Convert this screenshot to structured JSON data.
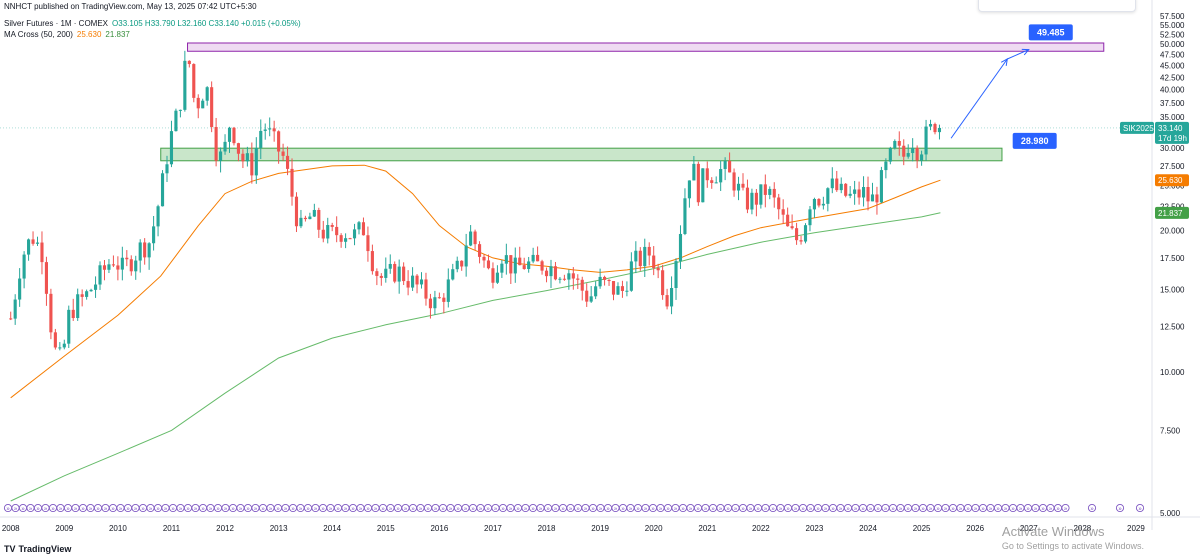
{
  "header": {
    "published": "NNHCT published on TradingView.com, May 13, 2025 07:42 UTC+5:30"
  },
  "legend": {
    "symbol": "Silver Futures · 1M · COMEX",
    "ohlc": "O33.105 H33.790 L32.160 C33.140 +0.015 (+0.05%)",
    "ma_label": "MA Cross (50, 200)",
    "ma_fast_value": "25.630",
    "ma_slow_value": "21.837"
  },
  "footer": {
    "logo": "TV",
    "brand": "TradingView"
  },
  "windows_watermark": {
    "line1": "Activate Windows",
    "line2": "Go to Settings to activate Windows."
  },
  "colors": {
    "up": "#26a69a",
    "down": "#ef5350",
    "ma_fast": "#f57c00",
    "ma_slow": "#66bb6a",
    "resistance_zone": "#e1bee7",
    "support_zone": "#a5d6a7",
    "annotation": "#2962ff",
    "event_marker": "#7e57c2"
  },
  "chart_data": {
    "type": "candlestick",
    "y_scale": "log",
    "ylim": [
      4.9,
      58
    ],
    "y_ticks": [
      "57.500",
      "55.000",
      "52.500",
      "50.000",
      "47.500",
      "45.000",
      "42.500",
      "40.000",
      "37.500",
      "35.000",
      "32.500",
      "30.000",
      "27.500",
      "25.000",
      "22.500",
      "20.000",
      "17.500",
      "15.000",
      "12.500",
      "10.000",
      "7.500",
      "5.000"
    ],
    "x_ticks": [
      "2008",
      "2009",
      "2010",
      "2011",
      "2012",
      "2013",
      "2014",
      "2015",
      "2016",
      "2017",
      "2018",
      "2019",
      "2020",
      "2021",
      "2022",
      "2023",
      "2024",
      "2025",
      "2026",
      "2027",
      "2028",
      "2029"
    ],
    "x_range": [
      2007.8,
      2029.3
    ],
    "price_path": [
      [
        2008.0,
        13.0
      ],
      [
        2008.2,
        17.5
      ],
      [
        2008.4,
        19.5
      ],
      [
        2008.6,
        18.0
      ],
      [
        2008.8,
        11.2
      ],
      [
        2008.95,
        10.5
      ],
      [
        2009.1,
        13.5
      ],
      [
        2009.4,
        14.5
      ],
      [
        2009.7,
        16.2
      ],
      [
        2009.9,
        17.5
      ],
      [
        2010.1,
        16.5
      ],
      [
        2010.4,
        18.3
      ],
      [
        2010.6,
        19.0
      ],
      [
        2010.8,
        24.0
      ],
      [
        2010.95,
        30.5
      ],
      [
        2011.15,
        37.0
      ],
      [
        2011.3,
        48.5
      ],
      [
        2011.45,
        36.0
      ],
      [
        2011.55,
        39.5
      ],
      [
        2011.7,
        40.0
      ],
      [
        2011.8,
        30.5
      ],
      [
        2011.95,
        28.2
      ],
      [
        2012.1,
        34.5
      ],
      [
        2012.3,
        28.5
      ],
      [
        2012.5,
        27.5
      ],
      [
        2012.7,
        34.0
      ],
      [
        2012.9,
        31.0
      ],
      [
        2013.1,
        28.5
      ],
      [
        2013.25,
        23.8
      ],
      [
        2013.4,
        20.0
      ],
      [
        2013.6,
        21.5
      ],
      [
        2013.8,
        20.0
      ],
      [
        2013.95,
        19.5
      ],
      [
        2014.2,
        20.0
      ],
      [
        2014.4,
        19.5
      ],
      [
        2014.6,
        20.3
      ],
      [
        2014.8,
        16.5
      ],
      [
        2014.95,
        15.7
      ],
      [
        2015.2,
        16.5
      ],
      [
        2015.5,
        15.5
      ],
      [
        2015.7,
        14.8
      ],
      [
        2015.95,
        13.9
      ],
      [
        2016.2,
        15.5
      ],
      [
        2016.4,
        17.0
      ],
      [
        2016.55,
        20.0
      ],
      [
        2016.75,
        18.0
      ],
      [
        2016.95,
        16.0
      ],
      [
        2017.15,
        18.0
      ],
      [
        2017.4,
        16.5
      ],
      [
        2017.6,
        17.0
      ],
      [
        2017.8,
        16.8
      ],
      [
        2017.95,
        17.0
      ],
      [
        2018.2,
        16.5
      ],
      [
        2018.4,
        16.5
      ],
      [
        2018.6,
        15.3
      ],
      [
        2018.8,
        14.3
      ],
      [
        2018.95,
        15.5
      ],
      [
        2019.2,
        15.1
      ],
      [
        2019.4,
        14.7
      ],
      [
        2019.6,
        17.0
      ],
      [
        2019.8,
        17.5
      ],
      [
        2019.95,
        18.0
      ],
      [
        2020.15,
        15.5
      ],
      [
        2020.25,
        14.5
      ],
      [
        2020.45,
        18.5
      ],
      [
        2020.6,
        24.5
      ],
      [
        2020.7,
        28.0
      ],
      [
        2020.85,
        24.0
      ],
      [
        2020.95,
        26.5
      ],
      [
        2021.1,
        26.5
      ],
      [
        2021.3,
        27.0
      ],
      [
        2021.5,
        25.5
      ],
      [
        2021.7,
        23.0
      ],
      [
        2021.95,
        23.5
      ],
      [
        2022.1,
        24.5
      ],
      [
        2022.3,
        22.5
      ],
      [
        2022.5,
        20.0
      ],
      [
        2022.7,
        19.0
      ],
      [
        2022.85,
        21.5
      ],
      [
        2022.95,
        24.0
      ],
      [
        2023.1,
        23.5
      ],
      [
        2023.3,
        25.0
      ],
      [
        2023.5,
        24.0
      ],
      [
        2023.7,
        23.5
      ],
      [
        2023.9,
        24.2
      ],
      [
        2024.05,
        23.0
      ],
      [
        2024.2,
        24.5
      ],
      [
        2024.35,
        27.5
      ],
      [
        2024.5,
        30.0
      ],
      [
        2024.65,
        28.5
      ],
      [
        2024.8,
        32.0
      ],
      [
        2024.95,
        29.5
      ],
      [
        2025.05,
        31.5
      ],
      [
        2025.15,
        32.5
      ],
      [
        2025.25,
        34.0
      ],
      [
        2025.35,
        33.14
      ]
    ],
    "ma50_path": [
      [
        2008.0,
        8.8
      ],
      [
        2009.0,
        10.8
      ],
      [
        2010.0,
        13.2
      ],
      [
        2010.8,
        16.0
      ],
      [
        2011.5,
        20.5
      ],
      [
        2012.0,
        24.0
      ],
      [
        2012.5,
        25.5
      ],
      [
        2013.0,
        26.5
      ],
      [
        2013.5,
        27.0
      ],
      [
        2014.0,
        27.5
      ],
      [
        2014.6,
        27.6
      ],
      [
        2015.0,
        26.8
      ],
      [
        2015.5,
        24.0
      ],
      [
        2016.0,
        20.5
      ],
      [
        2016.5,
        18.5
      ],
      [
        2017.0,
        17.5
      ],
      [
        2017.5,
        17.0
      ],
      [
        2018.0,
        16.8
      ],
      [
        2018.5,
        16.5
      ],
      [
        2019.0,
        16.3
      ],
      [
        2019.5,
        16.5
      ],
      [
        2020.0,
        16.8
      ],
      [
        2020.5,
        17.5
      ],
      [
        2021.0,
        18.5
      ],
      [
        2021.5,
        19.5
      ],
      [
        2022.0,
        20.3
      ],
      [
        2022.5,
        20.8
      ],
      [
        2023.0,
        21.3
      ],
      [
        2023.5,
        21.8
      ],
      [
        2024.0,
        22.3
      ],
      [
        2024.5,
        23.5
      ],
      [
        2025.0,
        24.8
      ],
      [
        2025.35,
        25.63
      ]
    ],
    "ma200_path": [
      [
        2008.0,
        5.3
      ],
      [
        2009.0,
        6.0
      ],
      [
        2010.0,
        6.7
      ],
      [
        2011.0,
        7.5
      ],
      [
        2012.0,
        9.0
      ],
      [
        2013.0,
        10.7
      ],
      [
        2014.0,
        11.8
      ],
      [
        2015.0,
        12.6
      ],
      [
        2016.0,
        13.3
      ],
      [
        2017.0,
        14.2
      ],
      [
        2018.0,
        14.9
      ],
      [
        2019.0,
        15.7
      ],
      [
        2020.0,
        16.6
      ],
      [
        2021.0,
        17.8
      ],
      [
        2022.0,
        18.9
      ],
      [
        2023.0,
        19.8
      ],
      [
        2024.0,
        20.6
      ],
      [
        2025.0,
        21.4
      ],
      [
        2025.35,
        21.837
      ]
    ],
    "resistance_zone": {
      "x_from": 2011.3,
      "x_to": 2028.4,
      "y_from": 48.3,
      "y_to": 50.3
    },
    "support_zone": {
      "x_from": 2010.8,
      "x_to": 2026.5,
      "y_from": 28.2,
      "y_to": 30.0
    },
    "projection_arrows": [
      {
        "from": [
          2025.55,
          31.5
        ],
        "to": [
          2026.6,
          46.5
        ]
      },
      {
        "from": [
          2026.6,
          46.5
        ],
        "to": [
          2027.0,
          48.7
        ]
      }
    ],
    "labels": {
      "target": "49.485",
      "support": "28.980",
      "last_price": "33.140",
      "countdown": "17d 19h",
      "contract": "SIK2025",
      "ma_fast": "25.630",
      "ma_slow": "21.837"
    },
    "label_levels": {
      "target": 49.485,
      "support": 28.98,
      "last_price": 33.14,
      "ma_fast": 25.63,
      "ma_slow": 21.837
    },
    "events_marker": "»"
  }
}
